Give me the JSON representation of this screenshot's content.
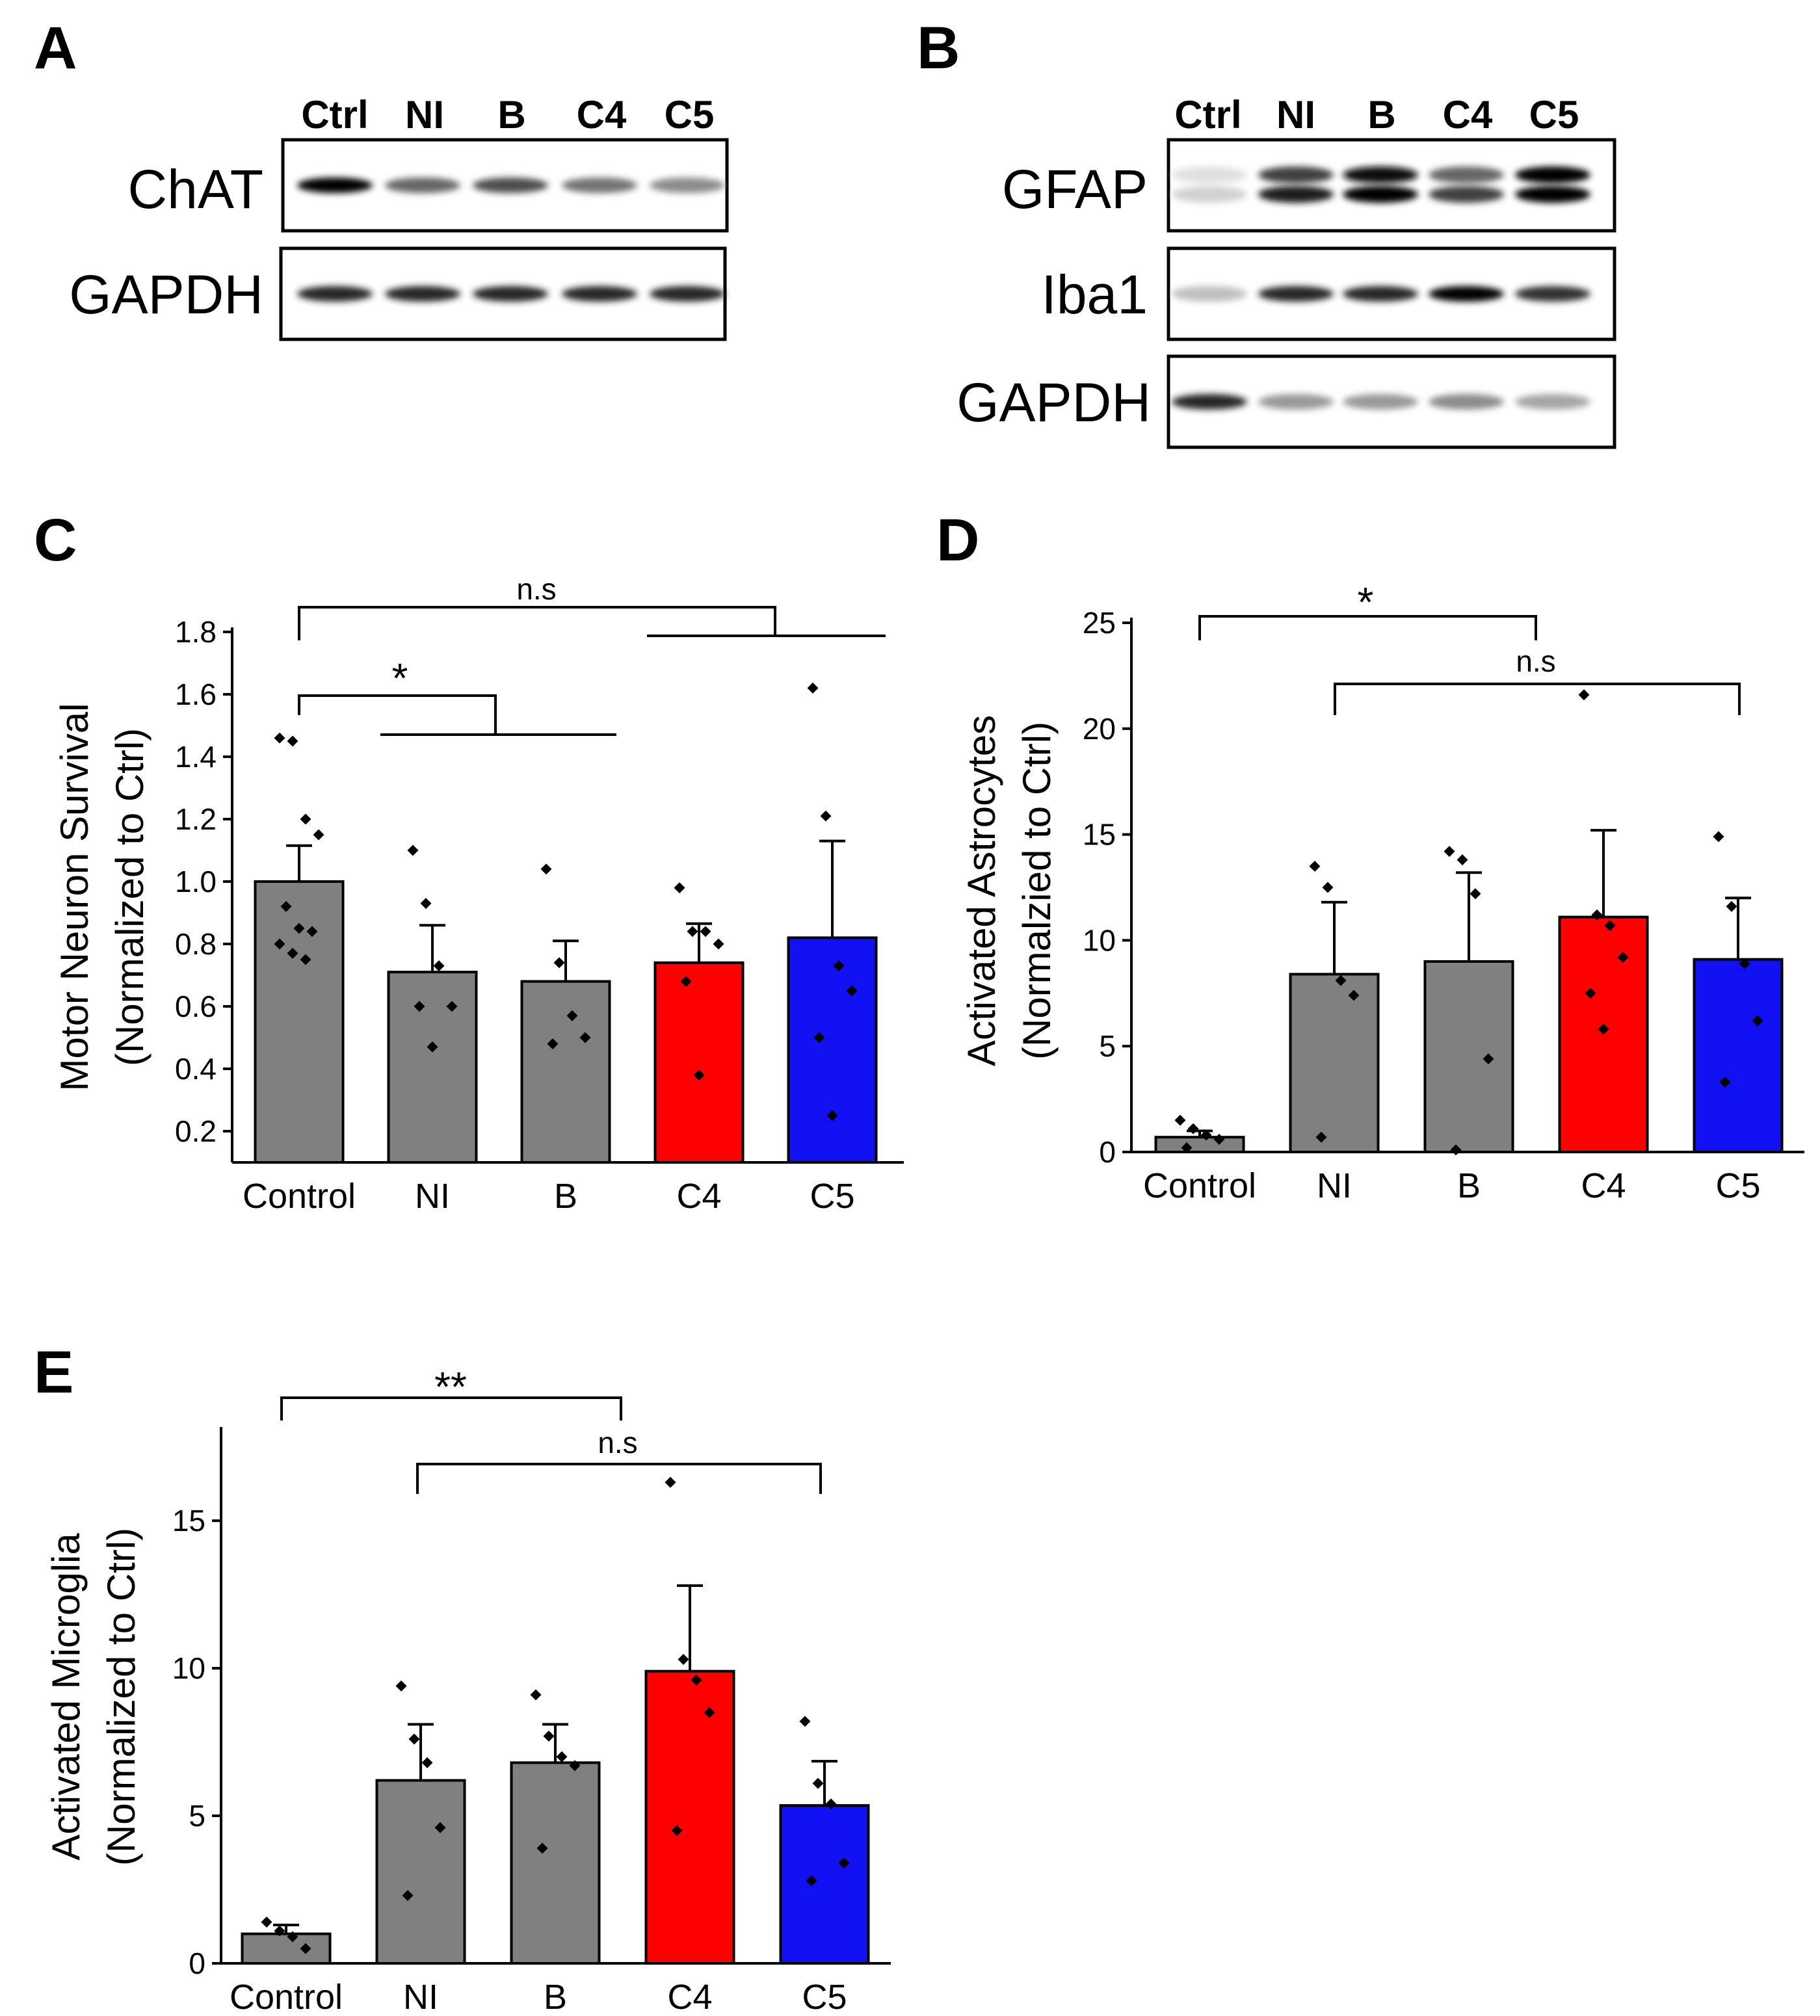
{
  "colors": {
    "gray": "#808080",
    "red": "#ff0000",
    "blue": "#1010f0",
    "black": "#000000"
  },
  "panels": {
    "a": "A",
    "b": "B",
    "c": "C",
    "d": "D",
    "e": "E"
  },
  "blot_a": {
    "lanes": [
      "Ctrl",
      "NI",
      "B",
      "C4",
      "C5"
    ],
    "rows": [
      {
        "label": "ChAT",
        "intensities": [
          [
            1.0
          ],
          [
            0.6
          ],
          [
            0.7
          ],
          [
            0.55
          ],
          [
            0.45
          ]
        ]
      },
      {
        "label": "GAPDH",
        "intensities": [
          [
            0.85
          ],
          [
            0.85
          ],
          [
            0.85
          ],
          [
            0.85
          ],
          [
            0.85
          ]
        ]
      }
    ]
  },
  "blot_b": {
    "lanes": [
      "Ctrl",
      "NI",
      "B",
      "C4",
      "C5"
    ],
    "rows": [
      {
        "label": "GFAP",
        "intensities": [
          [
            0.12,
            0.18
          ],
          [
            0.75,
            0.9
          ],
          [
            0.95,
            1.0
          ],
          [
            0.6,
            0.75
          ],
          [
            1.0,
            1.0
          ]
        ]
      },
      {
        "label": "Iba1",
        "intensities": [
          [
            0.25
          ],
          [
            0.85
          ],
          [
            0.85
          ],
          [
            1.0
          ],
          [
            0.8
          ]
        ]
      },
      {
        "label": "GAPDH",
        "intensities": [
          [
            0.85
          ],
          [
            0.4
          ],
          [
            0.4
          ],
          [
            0.45
          ],
          [
            0.35
          ]
        ]
      }
    ]
  },
  "chart_data": [
    {
      "panel": "C",
      "type": "bar",
      "categories": [
        "Control",
        "NI",
        "B",
        "C4",
        "C5"
      ],
      "values": [
        1.0,
        0.71,
        0.68,
        0.74,
        0.82
      ],
      "errors": [
        0.115,
        0.15,
        0.13,
        0.125,
        0.31
      ],
      "points": [
        [
          1.46,
          1.45,
          1.2,
          1.15,
          0.92,
          0.85,
          0.84,
          0.8,
          0.77,
          0.75
        ],
        [
          1.1,
          0.93,
          0.73,
          0.6,
          0.6,
          0.47
        ],
        [
          1.04,
          0.74,
          0.57,
          0.5,
          0.48
        ],
        [
          0.98,
          0.84,
          0.84,
          0.8,
          0.68,
          0.38
        ],
        [
          1.62,
          1.21,
          0.73,
          0.65,
          0.5,
          0.25
        ]
      ],
      "colors": [
        "#808080",
        "#808080",
        "#808080",
        "#ff0000",
        "#1010f0"
      ],
      "ylabel": [
        "Motor Neuron Survival",
        "(Normalized to Ctrl)"
      ],
      "ylim": [
        0.1,
        1.8
      ],
      "yticks": [
        0.2,
        0.4,
        0.6,
        0.8,
        1.0,
        1.2,
        1.4,
        1.6,
        1.8
      ],
      "yticklabels": [
        "0.2",
        "0.4",
        "0.6",
        "0.8",
        "1.0",
        "1.2",
        "1.4",
        "1.6",
        "1.8"
      ],
      "annotations": {
        "star": "*",
        "ns": "n.s"
      }
    },
    {
      "panel": "D",
      "type": "bar",
      "categories": [
        "Control",
        "NI",
        "B",
        "C4",
        "C5"
      ],
      "values": [
        0.7,
        8.4,
        9.0,
        11.1,
        9.1
      ],
      "errors": [
        0.3,
        3.4,
        4.2,
        4.1,
        2.9
      ],
      "points": [
        [
          1.5,
          1.1,
          0.8,
          0.6,
          0.2
        ],
        [
          13.5,
          12.5,
          8.1,
          7.4,
          0.7
        ],
        [
          14.2,
          13.8,
          12.2,
          4.4,
          0.1
        ],
        [
          21.6,
          11.2,
          10.7,
          9.2,
          7.5,
          5.8
        ],
        [
          14.9,
          11.6,
          8.9,
          6.2,
          3.3
        ]
      ],
      "colors": [
        "#808080",
        "#808080",
        "#808080",
        "#ff0000",
        "#1010f0"
      ],
      "ylabel": [
        "Activated Astrocytes",
        "(Normalzied to Ctrl)"
      ],
      "ylim": [
        0,
        25
      ],
      "yticks": [
        0,
        5,
        10,
        15,
        20,
        25
      ],
      "yticklabels": [
        "0",
        "5",
        "10",
        "15",
        "20",
        "25"
      ],
      "annotations": {
        "star": "*",
        "ns": "n.s"
      }
    },
    {
      "panel": "E",
      "type": "bar",
      "categories": [
        "Control",
        "NI",
        "B",
        "C4",
        "C5"
      ],
      "values": [
        1.0,
        6.2,
        6.8,
        9.9,
        5.35
      ],
      "errors": [
        0.3,
        1.9,
        1.3,
        2.9,
        1.5
      ],
      "points": [
        [
          1.4,
          1.1,
          0.9,
          0.5
        ],
        [
          9.4,
          7.6,
          6.8,
          4.6,
          2.3
        ],
        [
          9.1,
          7.7,
          7.0,
          6.7,
          3.9
        ],
        [
          16.3,
          10.3,
          9.6,
          8.5,
          4.5
        ],
        [
          8.2,
          6.1,
          5.4,
          3.4,
          2.8
        ]
      ],
      "colors": [
        "#808080",
        "#808080",
        "#808080",
        "#ff0000",
        "#1010f0"
      ],
      "ylabel": [
        "Activated Microglia",
        "(Normalized to Ctrl)"
      ],
      "ylim": [
        0,
        18
      ],
      "yticks": [
        0,
        5,
        10,
        15
      ],
      "yticklabels": [
        "0",
        "5",
        "10",
        "15"
      ],
      "annotations": {
        "star": "**",
        "ns": "n.s"
      }
    }
  ]
}
